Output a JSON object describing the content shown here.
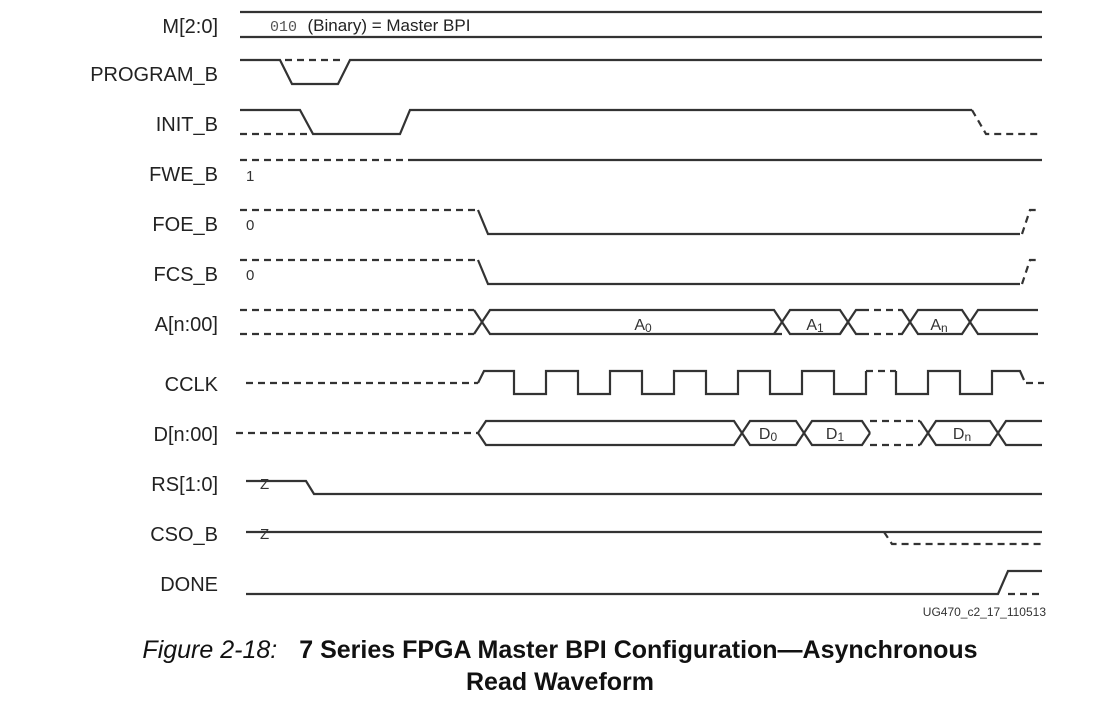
{
  "signals": [
    {
      "id": "m",
      "label": "M[2:0]"
    },
    {
      "id": "program_b",
      "label": "PROGRAM_B"
    },
    {
      "id": "init_b",
      "label": "INIT_B"
    },
    {
      "id": "fwe_b",
      "label": "FWE_B"
    },
    {
      "id": "foe_b",
      "label": "FOE_B"
    },
    {
      "id": "fcs_b",
      "label": "FCS_B"
    },
    {
      "id": "a",
      "label": "A[n:00]"
    },
    {
      "id": "cclk",
      "label": "CCLK"
    },
    {
      "id": "d",
      "label": "D[n:00]"
    },
    {
      "id": "rs",
      "label": "RS[1:0]"
    },
    {
      "id": "cso_b",
      "label": "CSO_B"
    },
    {
      "id": "done",
      "label": "DONE"
    }
  ],
  "mode": {
    "code": "010",
    "text": "(Binary) = Master BPI"
  },
  "values": {
    "fwe": "1",
    "foe": "0",
    "fcs": "0",
    "rs": "Z",
    "cso": "Z"
  },
  "address_labels": [
    {
      "base": "A",
      "sub": "0"
    },
    {
      "base": "A",
      "sub": "1"
    },
    {
      "base": "A",
      "sub": "n"
    }
  ],
  "data_labels": [
    {
      "base": "D",
      "sub": "0"
    },
    {
      "base": "D",
      "sub": "1"
    },
    {
      "base": "D",
      "sub": "n"
    }
  ],
  "figure_id": "UG470_c2_17_110513",
  "caption": {
    "number": "Figure 2-18:",
    "title_line1": "7 Series FPGA Master BPI Configuration—Asynchronous",
    "title_line2": "Read Waveform"
  }
}
